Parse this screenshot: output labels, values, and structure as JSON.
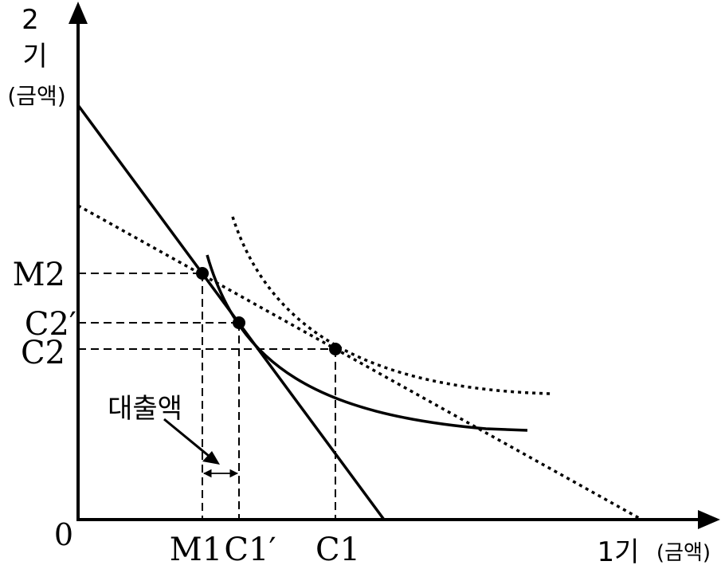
{
  "axes": {
    "origin_label": "0",
    "x_label_main": "1기",
    "x_label_unit": "(금액)",
    "y_label_top": "2",
    "y_label_mid": "기",
    "y_label_unit": "(금액)"
  },
  "x_ticks": {
    "m1": "M1",
    "c1_prime": "C1′",
    "c1": "C1"
  },
  "y_ticks": {
    "m2": "M2",
    "c2_prime": "C2′",
    "c2": "C2"
  },
  "annotation": {
    "loan_label": "대출액"
  }
}
